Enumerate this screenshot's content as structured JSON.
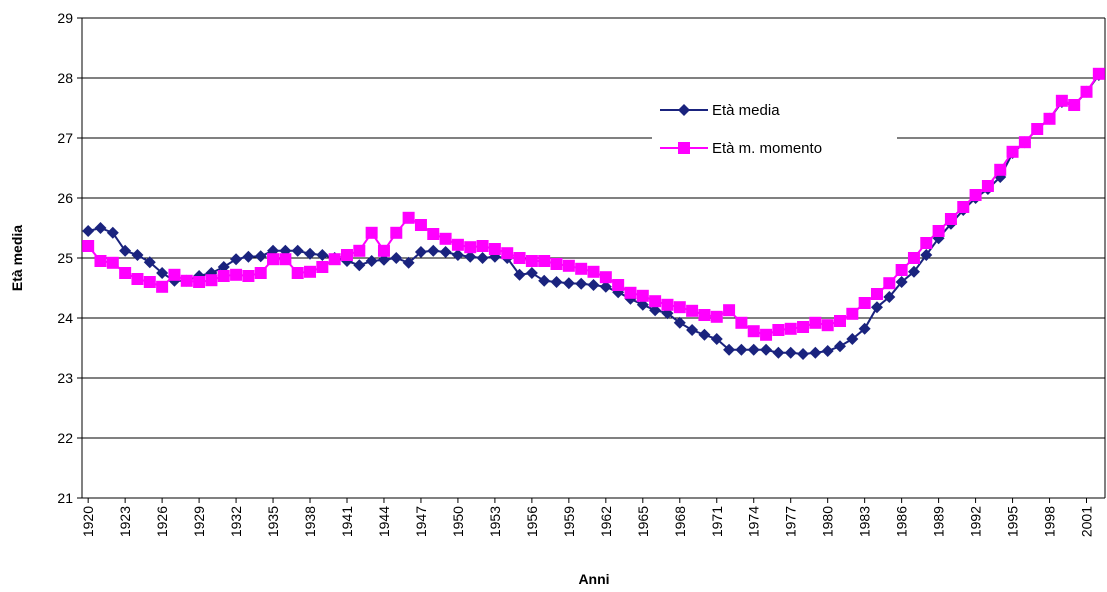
{
  "chart_data": {
    "type": "line",
    "x_label": "Anni",
    "y_label": "Età media",
    "x": [
      1920,
      1921,
      1922,
      1923,
      1924,
      1925,
      1926,
      1927,
      1928,
      1929,
      1930,
      1931,
      1932,
      1933,
      1934,
      1935,
      1936,
      1937,
      1938,
      1939,
      1940,
      1941,
      1942,
      1943,
      1944,
      1945,
      1946,
      1947,
      1948,
      1949,
      1950,
      1951,
      1952,
      1953,
      1954,
      1955,
      1956,
      1957,
      1958,
      1959,
      1960,
      1961,
      1962,
      1963,
      1964,
      1965,
      1966,
      1967,
      1968,
      1969,
      1970,
      1971,
      1972,
      1973,
      1974,
      1975,
      1976,
      1977,
      1978,
      1979,
      1980,
      1981,
      1982,
      1983,
      1984,
      1985,
      1986,
      1987,
      1988,
      1989,
      1990,
      1991,
      1992,
      1993,
      1994,
      1995,
      1996,
      1997,
      1998,
      1999,
      2000,
      2001,
      2002
    ],
    "series": [
      {
        "name": "Età media",
        "color": "#1a237e",
        "marker": "diamond",
        "values": [
          25.45,
          25.5,
          25.42,
          25.12,
          25.05,
          24.93,
          24.75,
          24.62,
          24.62,
          24.7,
          24.75,
          24.85,
          24.98,
          25.02,
          25.03,
          25.12,
          25.12,
          25.12,
          25.07,
          25.05,
          25.0,
          24.95,
          24.88,
          24.95,
          24.97,
          25.0,
          24.92,
          25.1,
          25.12,
          25.1,
          25.05,
          25.02,
          25.0,
          25.02,
          25.0,
          24.72,
          24.75,
          24.62,
          24.6,
          24.58,
          24.57,
          24.55,
          24.52,
          24.43,
          24.32,
          24.22,
          24.13,
          24.08,
          23.92,
          23.8,
          23.72,
          23.65,
          23.47,
          23.47,
          23.47,
          23.47,
          23.42,
          23.42,
          23.4,
          23.42,
          23.45,
          23.53,
          23.65,
          23.82,
          24.18,
          24.35,
          24.6,
          24.77,
          25.05,
          25.33,
          25.57,
          25.8,
          26.0,
          26.15,
          26.35,
          26.75,
          26.93,
          27.15,
          27.32,
          27.6,
          27.55,
          27.77,
          28.05
        ]
      },
      {
        "name": "Età m. momento",
        "color": "#ff00ff",
        "marker": "square",
        "values": [
          25.2,
          24.95,
          24.92,
          24.75,
          24.65,
          24.6,
          24.52,
          24.72,
          24.62,
          24.6,
          24.63,
          24.7,
          24.72,
          24.7,
          24.75,
          24.98,
          24.98,
          24.75,
          24.77,
          24.85,
          24.98,
          25.05,
          25.12,
          25.42,
          25.12,
          25.42,
          25.67,
          25.55,
          25.4,
          25.32,
          25.22,
          25.18,
          25.2,
          25.15,
          25.08,
          25.0,
          24.95,
          24.95,
          24.9,
          24.87,
          24.82,
          24.77,
          24.68,
          24.55,
          24.42,
          24.37,
          24.28,
          24.22,
          24.18,
          24.12,
          24.05,
          24.02,
          24.13,
          23.92,
          23.78,
          23.72,
          23.8,
          23.82,
          23.85,
          23.92,
          23.88,
          23.95,
          24.07,
          24.25,
          24.4,
          24.58,
          24.8,
          25.0,
          25.25,
          25.45,
          25.65,
          25.85,
          26.05,
          26.2,
          26.47,
          26.77,
          26.93,
          27.15,
          27.32,
          27.62,
          27.55,
          27.77,
          28.07
        ]
      }
    ],
    "xlim": [
      1919.5,
      2002.5
    ],
    "xticks": [
      1920,
      1923,
      1926,
      1929,
      1932,
      1935,
      1938,
      1941,
      1944,
      1947,
      1950,
      1953,
      1956,
      1959,
      1962,
      1965,
      1968,
      1971,
      1974,
      1977,
      1980,
      1983,
      1986,
      1989,
      1992,
      1995,
      1998,
      2001
    ],
    "ylim": [
      21,
      29
    ],
    "yticks": [
      21,
      22,
      23,
      24,
      25,
      26,
      27,
      28,
      29
    ],
    "grid": true,
    "legend": "upper right"
  }
}
